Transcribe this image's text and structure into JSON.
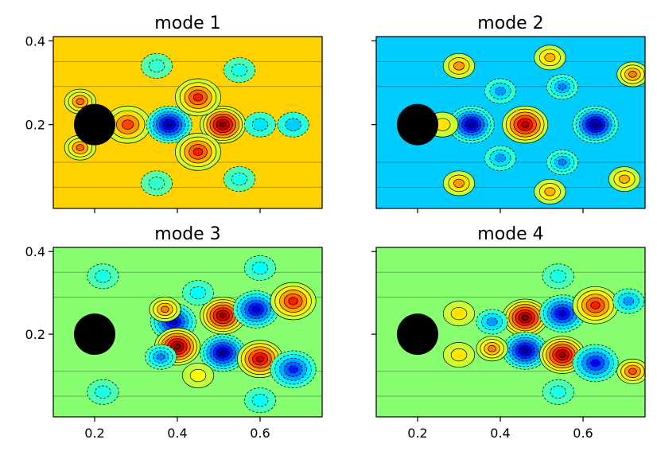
{
  "chart_data": [
    {
      "type": "heatmap",
      "title": "mode 1",
      "xlabel": "",
      "ylabel": "",
      "xlim": [
        0.1,
        0.75
      ],
      "ylim": [
        0.0,
        0.41
      ],
      "x_ticks": [
        0.2,
        0.4,
        0.6
      ],
      "y_ticks": [
        0.2,
        0.4
      ],
      "x_tick_labels_visible": false,
      "y_tick_labels_visible": true,
      "x_tick_labels": [
        "0.2",
        "0.4",
        "0.6"
      ],
      "y_tick_labels": [
        "0.2",
        "0.4"
      ],
      "colormap": "jet",
      "background_color": "#ffd200",
      "cylinder": {
        "center": [
          0.2,
          0.2
        ],
        "radius": 0.05,
        "color": "#000000"
      },
      "features": [
        {
          "x": 0.165,
          "y": 0.255,
          "value": 0.55
        },
        {
          "x": 0.165,
          "y": 0.145,
          "value": 0.55
        },
        {
          "x": 0.28,
          "y": 0.2,
          "value": 0.62
        },
        {
          "x": 0.38,
          "y": 0.2,
          "value": -0.95
        },
        {
          "x": 0.51,
          "y": 0.2,
          "value": 1.0
        },
        {
          "x": 0.45,
          "y": 0.265,
          "value": 0.7
        },
        {
          "x": 0.45,
          "y": 0.135,
          "value": 0.7
        },
        {
          "x": 0.6,
          "y": 0.2,
          "value": -0.3
        },
        {
          "x": 0.68,
          "y": 0.2,
          "value": -0.35
        },
        {
          "x": 0.35,
          "y": 0.34,
          "value": -0.15
        },
        {
          "x": 0.35,
          "y": 0.06,
          "value": -0.15
        },
        {
          "x": 0.55,
          "y": 0.07,
          "value": -0.2
        },
        {
          "x": 0.55,
          "y": 0.33,
          "value": -0.2
        }
      ]
    },
    {
      "type": "heatmap",
      "title": "mode 2",
      "xlabel": "",
      "ylabel": "",
      "xlim": [
        0.1,
        0.75
      ],
      "ylim": [
        0.0,
        0.41
      ],
      "x_ticks": [
        0.2,
        0.4,
        0.6
      ],
      "y_ticks": [
        0.2,
        0.4
      ],
      "x_tick_labels_visible": false,
      "y_tick_labels_visible": false,
      "x_tick_labels": [
        "0.2",
        "0.4",
        "0.6"
      ],
      "y_tick_labels": [
        "0.2",
        "0.4"
      ],
      "colormap": "jet",
      "background_color": "#00ccff",
      "cylinder": {
        "center": [
          0.2,
          0.2
        ],
        "radius": 0.05,
        "color": "#000000"
      },
      "features": [
        {
          "x": 0.33,
          "y": 0.2,
          "value": -0.95
        },
        {
          "x": 0.46,
          "y": 0.2,
          "value": 0.9
        },
        {
          "x": 0.63,
          "y": 0.2,
          "value": -1.0
        },
        {
          "x": 0.4,
          "y": 0.28,
          "value": -0.45
        },
        {
          "x": 0.4,
          "y": 0.12,
          "value": -0.45
        },
        {
          "x": 0.55,
          "y": 0.29,
          "value": -0.5
        },
        {
          "x": 0.55,
          "y": 0.11,
          "value": -0.5
        },
        {
          "x": 0.26,
          "y": 0.2,
          "value": 0.3
        },
        {
          "x": 0.3,
          "y": 0.34,
          "value": 0.45
        },
        {
          "x": 0.3,
          "y": 0.06,
          "value": 0.45
        },
        {
          "x": 0.72,
          "y": 0.32,
          "value": 0.5
        },
        {
          "x": 0.7,
          "y": 0.07,
          "value": 0.4
        },
        {
          "x": 0.52,
          "y": 0.36,
          "value": 0.4
        },
        {
          "x": 0.52,
          "y": 0.04,
          "value": 0.4
        }
      ]
    },
    {
      "type": "heatmap",
      "title": "mode 3",
      "xlabel": "",
      "ylabel": "",
      "xlim": [
        0.1,
        0.75
      ],
      "ylim": [
        0.0,
        0.41
      ],
      "x_ticks": [
        0.2,
        0.4,
        0.6
      ],
      "y_ticks": [
        0.2,
        0.4
      ],
      "x_tick_labels_visible": true,
      "y_tick_labels_visible": true,
      "x_tick_labels": [
        "0.2",
        "0.4",
        "0.6"
      ],
      "y_tick_labels": [
        "0.2",
        "0.4"
      ],
      "colormap": "jet",
      "background_color": "#88ff70",
      "cylinder": {
        "center": [
          0.2,
          0.2
        ],
        "radius": 0.05,
        "color": "#000000"
      },
      "features": [
        {
          "x": 0.39,
          "y": 0.23,
          "value": -0.85
        },
        {
          "x": 0.4,
          "y": 0.17,
          "value": 1.0
        },
        {
          "x": 0.37,
          "y": 0.26,
          "value": 0.5
        },
        {
          "x": 0.36,
          "y": 0.145,
          "value": -0.5
        },
        {
          "x": 0.51,
          "y": 0.245,
          "value": 0.95
        },
        {
          "x": 0.51,
          "y": 0.155,
          "value": -0.95
        },
        {
          "x": 0.59,
          "y": 0.26,
          "value": -0.85
        },
        {
          "x": 0.6,
          "y": 0.14,
          "value": 0.85
        },
        {
          "x": 0.68,
          "y": 0.28,
          "value": 0.7
        },
        {
          "x": 0.68,
          "y": 0.115,
          "value": -0.7
        },
        {
          "x": 0.45,
          "y": 0.3,
          "value": -0.25
        },
        {
          "x": 0.45,
          "y": 0.1,
          "value": 0.25
        },
        {
          "x": 0.22,
          "y": 0.34,
          "value": -0.2
        },
        {
          "x": 0.22,
          "y": 0.06,
          "value": -0.2
        },
        {
          "x": 0.6,
          "y": 0.36,
          "value": -0.25
        },
        {
          "x": 0.6,
          "y": 0.04,
          "value": -0.25
        }
      ]
    },
    {
      "type": "heatmap",
      "title": "mode 4",
      "xlabel": "",
      "ylabel": "",
      "xlim": [
        0.1,
        0.75
      ],
      "ylim": [
        0.0,
        0.41
      ],
      "x_ticks": [
        0.2,
        0.4,
        0.6
      ],
      "y_ticks": [
        0.2,
        0.4
      ],
      "x_tick_labels_visible": true,
      "y_tick_labels_visible": false,
      "x_tick_labels": [
        "0.2",
        "0.4",
        "0.6"
      ],
      "y_tick_labels": [
        "0.2",
        "0.4"
      ],
      "colormap": "jet",
      "background_color": "#88ff70",
      "cylinder": {
        "center": [
          0.2,
          0.2
        ],
        "radius": 0.05,
        "color": "#000000"
      },
      "features": [
        {
          "x": 0.46,
          "y": 0.24,
          "value": 1.0
        },
        {
          "x": 0.46,
          "y": 0.16,
          "value": -0.95
        },
        {
          "x": 0.55,
          "y": 0.25,
          "value": -0.85
        },
        {
          "x": 0.55,
          "y": 0.15,
          "value": 0.95
        },
        {
          "x": 0.38,
          "y": 0.23,
          "value": -0.45
        },
        {
          "x": 0.38,
          "y": 0.165,
          "value": 0.5
        },
        {
          "x": 0.63,
          "y": 0.27,
          "value": 0.7
        },
        {
          "x": 0.63,
          "y": 0.13,
          "value": -0.75
        },
        {
          "x": 0.71,
          "y": 0.28,
          "value": -0.45
        },
        {
          "x": 0.72,
          "y": 0.11,
          "value": 0.6
        },
        {
          "x": 0.3,
          "y": 0.25,
          "value": 0.3
        },
        {
          "x": 0.3,
          "y": 0.15,
          "value": 0.3
        },
        {
          "x": 0.54,
          "y": 0.34,
          "value": -0.2
        },
        {
          "x": 0.54,
          "y": 0.06,
          "value": -0.2
        }
      ]
    }
  ]
}
